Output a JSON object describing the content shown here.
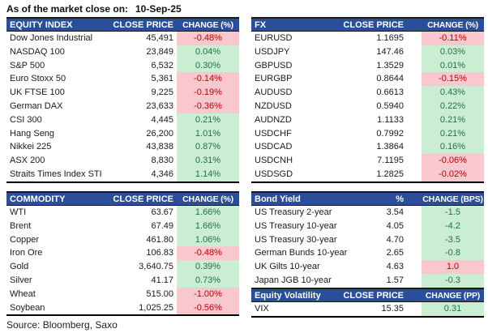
{
  "meta": {
    "title_label": "As of the market close on:",
    "date": "10-Sep-25",
    "source": "Source: Bloomberg, Saxo"
  },
  "colors": {
    "header_bg": "#2B4E9B",
    "header_text": "#FFFFFF",
    "positive_bg": "#CBEDD2",
    "positive_text": "#1F7246",
    "negative_bg": "#F9C7CE",
    "negative_text": "#C00000"
  },
  "tables": {
    "equity_index": {
      "title": "EQUITY INDEX",
      "col_price": "CLOSE PRICE",
      "col_change": "CHANGE (%)",
      "rows": [
        {
          "name": "Dow Jones Industrial",
          "price": "45,491",
          "change": "-0.48%",
          "color": "pink"
        },
        {
          "name": "NASDAQ 100",
          "price": "23,849",
          "change": "0.04%",
          "color": "green"
        },
        {
          "name": "S&P 500",
          "price": "6,532",
          "change": "0.30%",
          "color": "green"
        },
        {
          "name": "Euro Stoxx 50",
          "price": "5,361",
          "change": "-0.14%",
          "color": "pink"
        },
        {
          "name": "UK FTSE 100",
          "price": "9,225",
          "change": "-0.19%",
          "color": "pink"
        },
        {
          "name": "German DAX",
          "price": "23,633",
          "change": "-0.36%",
          "color": "pink"
        },
        {
          "name": "CSI 300",
          "price": "4,445",
          "change": "0.21%",
          "color": "green"
        },
        {
          "name": "Hang Seng",
          "price": "26,200",
          "change": "1.01%",
          "color": "green"
        },
        {
          "name": "Nikkei 225",
          "price": "43,838",
          "change": "0.87%",
          "color": "green"
        },
        {
          "name": "ASX 200",
          "price": "8,830",
          "change": "0.31%",
          "color": "green"
        },
        {
          "name": "Straits Times Index STI",
          "price": "4,346",
          "change": "1.14%",
          "color": "green"
        }
      ]
    },
    "fx": {
      "title": "FX",
      "col_price": "CLOSE PRICE",
      "col_change": "CHANGE (%)",
      "rows": [
        {
          "name": "EURUSD",
          "price": "1.1695",
          "change": "-0.11%",
          "color": "pink"
        },
        {
          "name": "USDJPY",
          "price": "147.46",
          "change": "0.03%",
          "color": "green"
        },
        {
          "name": "GBPUSD",
          "price": "1.3529",
          "change": "0.01%",
          "color": "green"
        },
        {
          "name": "EURGBP",
          "price": "0.8644",
          "change": "-0.15%",
          "color": "pink"
        },
        {
          "name": "AUDUSD",
          "price": "0.6613",
          "change": "0.43%",
          "color": "green"
        },
        {
          "name": "NZDUSD",
          "price": "0.5940",
          "change": "0.22%",
          "color": "green"
        },
        {
          "name": "AUDNZD",
          "price": "1.1133",
          "change": "0.21%",
          "color": "green"
        },
        {
          "name": "USDCHF",
          "price": "0.7992",
          "change": "0.21%",
          "color": "green"
        },
        {
          "name": "USDCAD",
          "price": "1.3864",
          "change": "0.16%",
          "color": "green"
        },
        {
          "name": "USDCNH",
          "price": "7.1195",
          "change": "-0.06%",
          "color": "pink"
        },
        {
          "name": "USDSGD",
          "price": "1.2825",
          "change": "-0.02%",
          "color": "pink"
        }
      ]
    },
    "commodity": {
      "title": "COMMODITY",
      "col_price": "CLOSE PRICE",
      "col_change": "CHANGE (%)",
      "rows": [
        {
          "name": "WTI",
          "price": "63.67",
          "change": "1.66%",
          "color": "green"
        },
        {
          "name": "Brent",
          "price": "67.49",
          "change": "1.66%",
          "color": "green"
        },
        {
          "name": "Copper",
          "price": "461.80",
          "change": "1.06%",
          "color": "green"
        },
        {
          "name": "Iron Ore",
          "price": "106.83",
          "change": "-0.48%",
          "color": "pink"
        },
        {
          "name": "Gold",
          "price": "3,640.75",
          "change": "0.39%",
          "color": "green"
        },
        {
          "name": "Silver",
          "price": "41.17",
          "change": "0.73%",
          "color": "green"
        },
        {
          "name": "Wheat",
          "price": "515.00",
          "change": "-1.00%",
          "color": "pink"
        },
        {
          "name": "Soybean",
          "price": "1,025.25",
          "change": "-0.56%",
          "color": "pink"
        }
      ]
    },
    "bond_yield": {
      "title": "Bond Yield",
      "col_price": "%",
      "col_change": "CHANGE (BPS)",
      "rows": [
        {
          "name": "US Treasury 2-year",
          "price": "3.54",
          "change": "-1.5",
          "color": "green"
        },
        {
          "name": "US Treasury 10-year",
          "price": "4.05",
          "change": "-4.2",
          "color": "green"
        },
        {
          "name": "US Treasury 30-year",
          "price": "4.70",
          "change": "-3.5",
          "color": "green"
        },
        {
          "name": "German Bunds 10-year",
          "price": "2.65",
          "change": "-0.8",
          "color": "green"
        },
        {
          "name": "UK Gilts 10-year",
          "price": "4.63",
          "change": "1.0",
          "color": "pink"
        },
        {
          "name": "Japan JGB 10-year",
          "price": "1.57",
          "change": "-0.3",
          "color": "green"
        }
      ]
    },
    "equity_volatility": {
      "title": "Equity Volatility",
      "col_price": "CLOSE PRICE",
      "col_change": "CHANGE (PP)",
      "rows": [
        {
          "name": "VIX",
          "price": "15.35",
          "change": "0.31",
          "color": "green"
        }
      ]
    }
  }
}
